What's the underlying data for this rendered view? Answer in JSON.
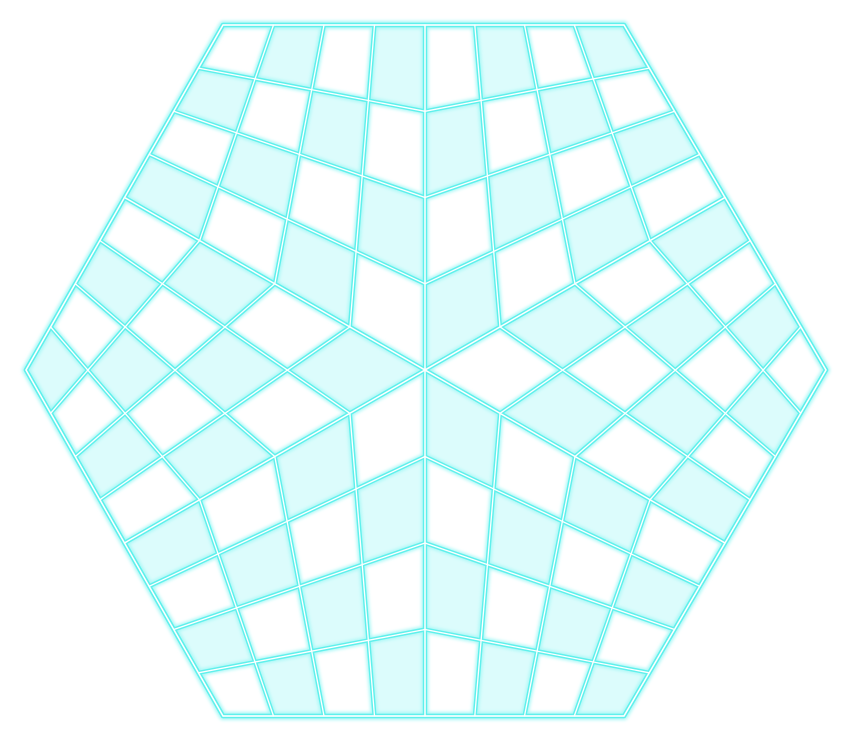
{
  "board": {
    "shape": "hexagon",
    "grid": "three-rhombus-sectors",
    "cells_per_side": 8,
    "colors": {
      "background": "#ffffff",
      "cell_light": "#ffffff",
      "cell_dark": "#dcfcfc",
      "grid_line": "#5ff0ec",
      "grid_highlight": "#ffffff",
      "glow": "#aaf8f6"
    }
  }
}
